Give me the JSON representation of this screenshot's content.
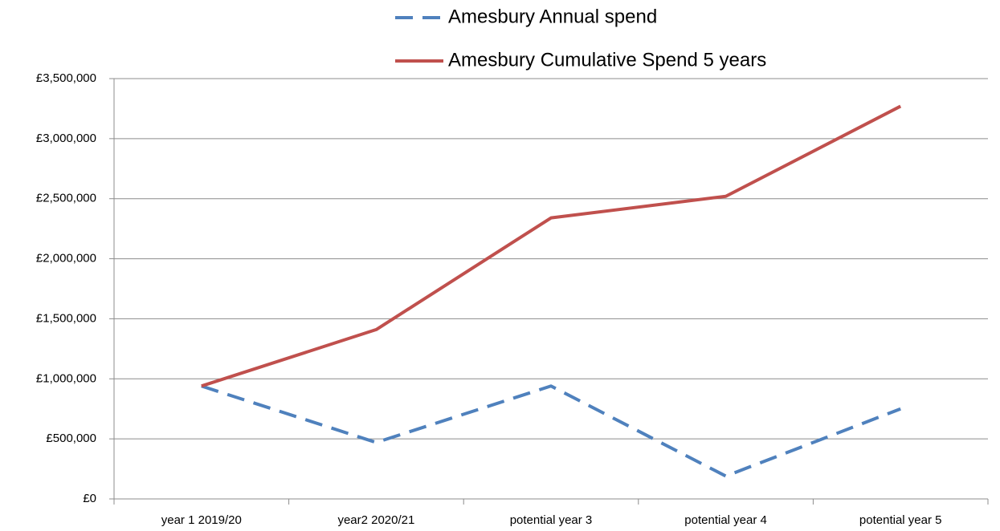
{
  "chart_data": {
    "type": "line",
    "categories": [
      "year 1 2019/20",
      "year2 2020/21",
      "potential year 3",
      "potential year 4",
      "potential year 5"
    ],
    "series": [
      {
        "name": "Amesbury Annual spend",
        "color": "#4f81bd",
        "dashed": true,
        "values": [
          940000,
          470000,
          940000,
          190000,
          750000
        ]
      },
      {
        "name": "Amesbury Cumulative Spend 5 years",
        "color": "#c0504d",
        "dashed": false,
        "values": [
          940000,
          1410000,
          2340000,
          2520000,
          3270000
        ]
      }
    ],
    "ylim": [
      0,
      3500000
    ],
    "yticks": [
      {
        "value": 0,
        "label": "£0"
      },
      {
        "value": 500000,
        "label": "£500,000"
      },
      {
        "value": 1000000,
        "label": "£1,000,000"
      },
      {
        "value": 1500000,
        "label": "£1,500,000"
      },
      {
        "value": 2000000,
        "label": "£2,000,000"
      },
      {
        "value": 2500000,
        "label": "£2,500,000"
      },
      {
        "value": 3000000,
        "label": "£3,000,000"
      },
      {
        "value": 3500000,
        "label": "£3,500,000"
      }
    ],
    "grid": true,
    "legend": "top"
  }
}
